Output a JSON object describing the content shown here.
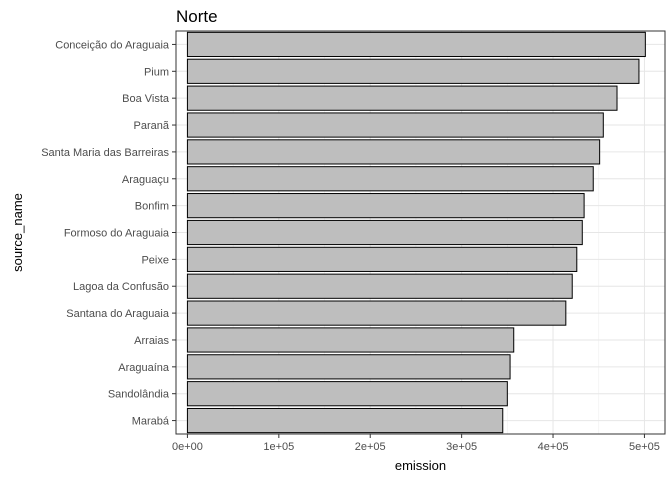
{
  "chart_data": {
    "type": "bar",
    "orientation": "horizontal",
    "title": "Norte",
    "xlabel": "emission",
    "ylabel": "source_name",
    "xlim": [
      -12500,
      522500
    ],
    "x_ticks": [
      0,
      100000,
      200000,
      300000,
      400000,
      500000
    ],
    "x_tick_labels": [
      "0e+00",
      "1e+05",
      "2e+05",
      "3e+05",
      "4e+05",
      "5e+05"
    ],
    "grid": true,
    "legend": "none",
    "bar_fill": "#bebebe",
    "bar_stroke": "#000000",
    "categories": [
      "Conceição do Araguaia",
      "Pium",
      "Boa Vista",
      "Paranã",
      "Santa Maria das Barreiras",
      "Araguaçu",
      "Bonfim",
      "Formoso do Araguaia",
      "Peixe",
      "Lagoa da Confusão",
      "Santana do Araguaia",
      "Arraias",
      "Araguaína",
      "Sandolândia",
      "Marabá"
    ],
    "values": [
      501000,
      494000,
      470000,
      455000,
      451000,
      444000,
      434000,
      432000,
      426000,
      421000,
      414000,
      357000,
      353000,
      350000,
      345000
    ]
  }
}
